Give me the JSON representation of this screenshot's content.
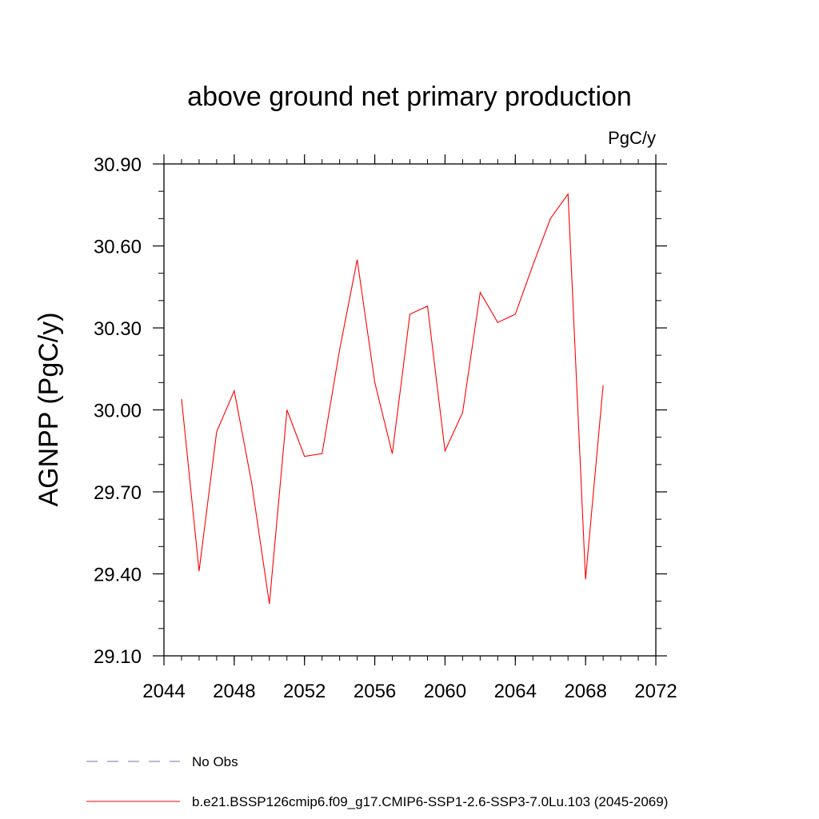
{
  "chart_data": {
    "type": "line",
    "title": "above ground net primary production",
    "units": "PgC/y",
    "ylabel": "AGNPP  (PgC/y)",
    "xlabel": "",
    "xlim": [
      2044,
      2072
    ],
    "ylim": [
      29.1,
      30.9
    ],
    "x_ticks": [
      2044,
      2048,
      2052,
      2056,
      2060,
      2064,
      2068,
      2072
    ],
    "x_tick_labels": [
      "2044",
      "2048",
      "2052",
      "2056",
      "2060",
      "2064",
      "2068",
      "2072"
    ],
    "x_minor_step": 1,
    "y_ticks": [
      29.1,
      29.4,
      29.7,
      30.0,
      30.3,
      30.6,
      30.9
    ],
    "y_tick_labels": [
      "29.10",
      "29.40",
      "29.70",
      "30.00",
      "30.30",
      "30.60",
      "30.90"
    ],
    "y_minor_step": 0.1,
    "grid": false,
    "legend_position": "bottom-left",
    "series": [
      {
        "name": "b.e21.BSSP126cmip6.f09_g17.CMIP6-SSP1-2.6-SSP3-7.0Lu.103 (2045-2069)",
        "color": "#ff0000",
        "dash": "solid",
        "x": [
          2045,
          2046,
          2047,
          2048,
          2049,
          2050,
          2051,
          2052,
          2053,
          2054,
          2055,
          2056,
          2057,
          2058,
          2059,
          2060,
          2061,
          2062,
          2063,
          2064,
          2065,
          2066,
          2067,
          2068,
          2069
        ],
        "y": [
          30.04,
          29.41,
          29.92,
          30.07,
          29.73,
          29.29,
          30.0,
          29.83,
          29.84,
          30.22,
          30.55,
          30.1,
          29.84,
          30.35,
          30.38,
          29.85,
          29.99,
          30.43,
          30.32,
          30.35,
          30.53,
          30.7,
          30.79,
          29.38,
          30.09
        ]
      }
    ],
    "legend": [
      {
        "label": "No Obs",
        "color": "#7b6fb0",
        "dash": "dashed"
      },
      {
        "label": "b.e21.BSSP126cmip6.f09_g17.CMIP6-SSP1-2.6-SSP3-7.0Lu.103 (2045-2069)",
        "color": "#ff0000",
        "dash": "solid"
      }
    ]
  }
}
